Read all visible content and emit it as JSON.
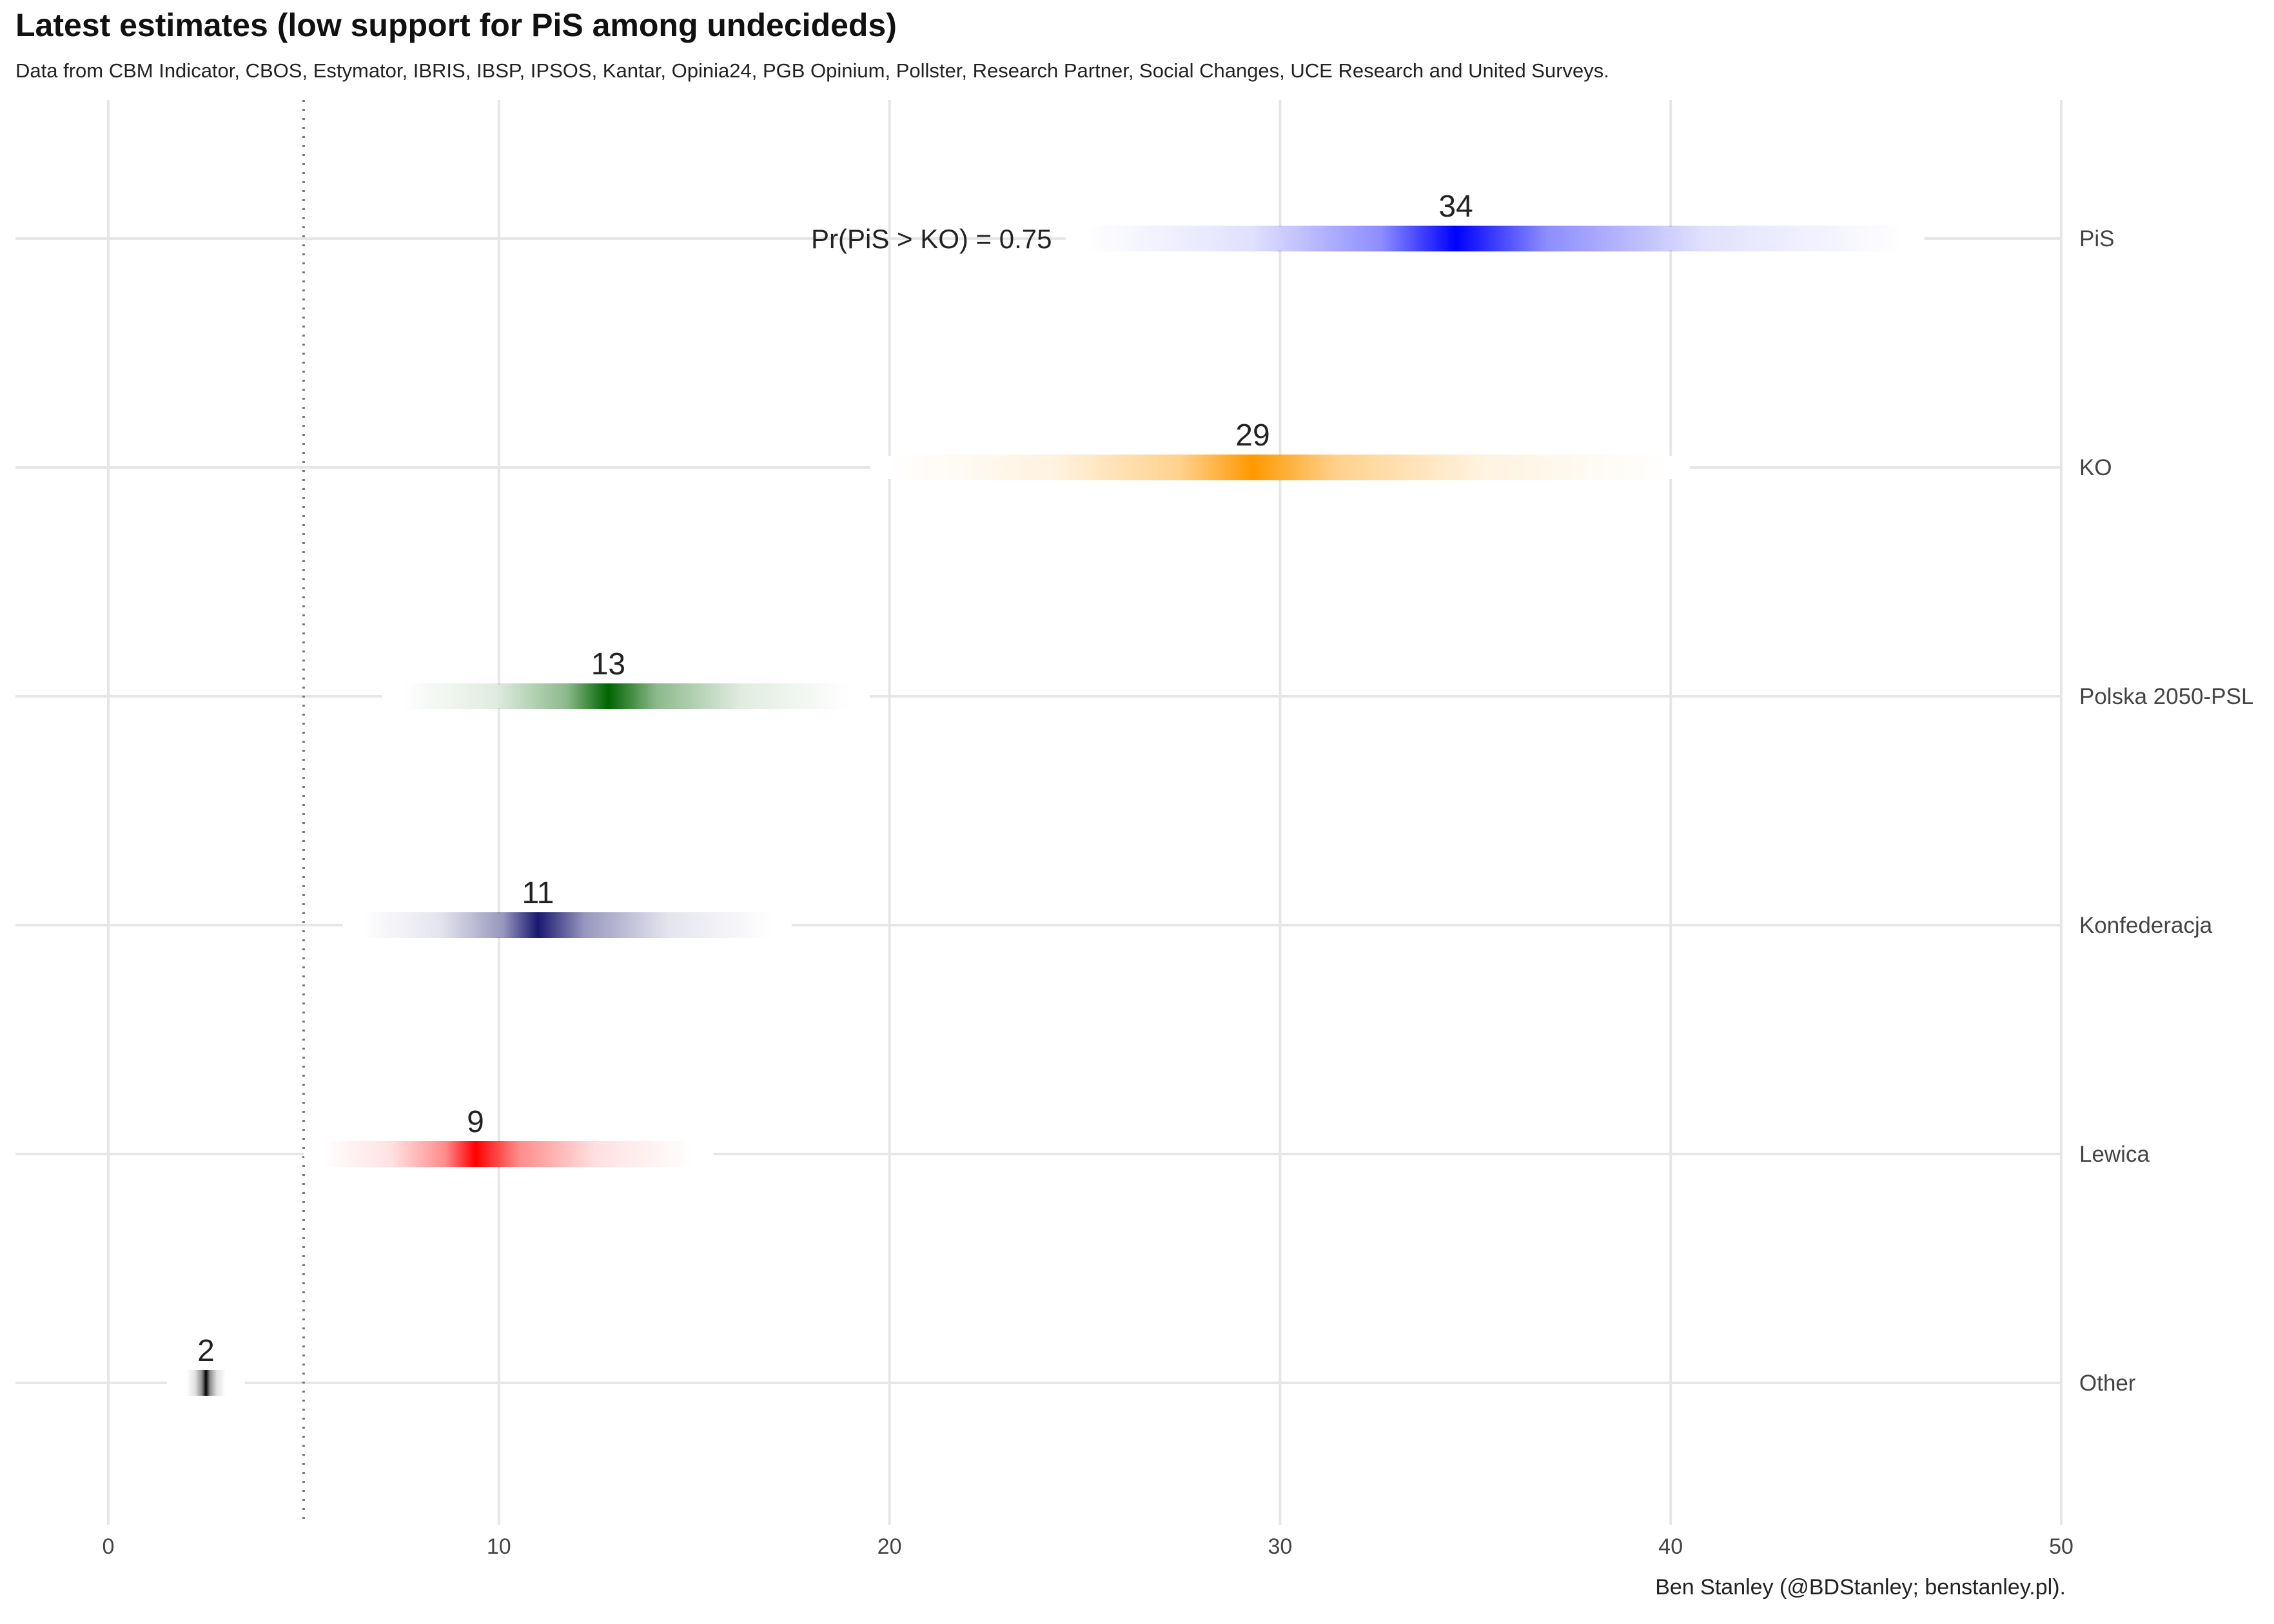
{
  "title": "Latest estimates (low support for PiS among undecideds)",
  "subtitle": "Data from CBM Indicator, CBOS, Estymator, IBRIS, IBSP, IPSOS, Kantar, Opinia24, PGB Opinium, Pollster, Research Partner, Social Changes, UCE Research and United Surveys.",
  "caption": "Ben Stanley (@BDStanley; benstanley.pl).",
  "annotation": "Pr(PiS > KO)  =  0.75",
  "chart_data": {
    "type": "interval",
    "xlim": [
      0,
      50
    ],
    "x_ticks": [
      0,
      10,
      20,
      30,
      40,
      50
    ],
    "threshold_line": 5,
    "grid": true,
    "series": [
      {
        "name": "PiS",
        "estimate": 34,
        "mode": 34.5,
        "low": 25,
        "high": 46,
        "color": "#0000ff"
      },
      {
        "name": "KO",
        "estimate": 29,
        "mode": 29.3,
        "low": 20,
        "high": 40,
        "color": "#ff9900"
      },
      {
        "name": "Polska 2050-PSL",
        "estimate": 13,
        "mode": 12.8,
        "low": 7.5,
        "high": 19,
        "color": "#006400"
      },
      {
        "name": "Konfederacja",
        "estimate": 11,
        "mode": 11,
        "low": 6.5,
        "high": 17,
        "color": "#191970"
      },
      {
        "name": "Lewica",
        "estimate": 9,
        "mode": 9.4,
        "low": 5.5,
        "high": 15,
        "color": "#ff0000"
      },
      {
        "name": "Other",
        "estimate": 2,
        "mode": 2.5,
        "low": 2,
        "high": 3,
        "color": "#000000"
      }
    ]
  }
}
